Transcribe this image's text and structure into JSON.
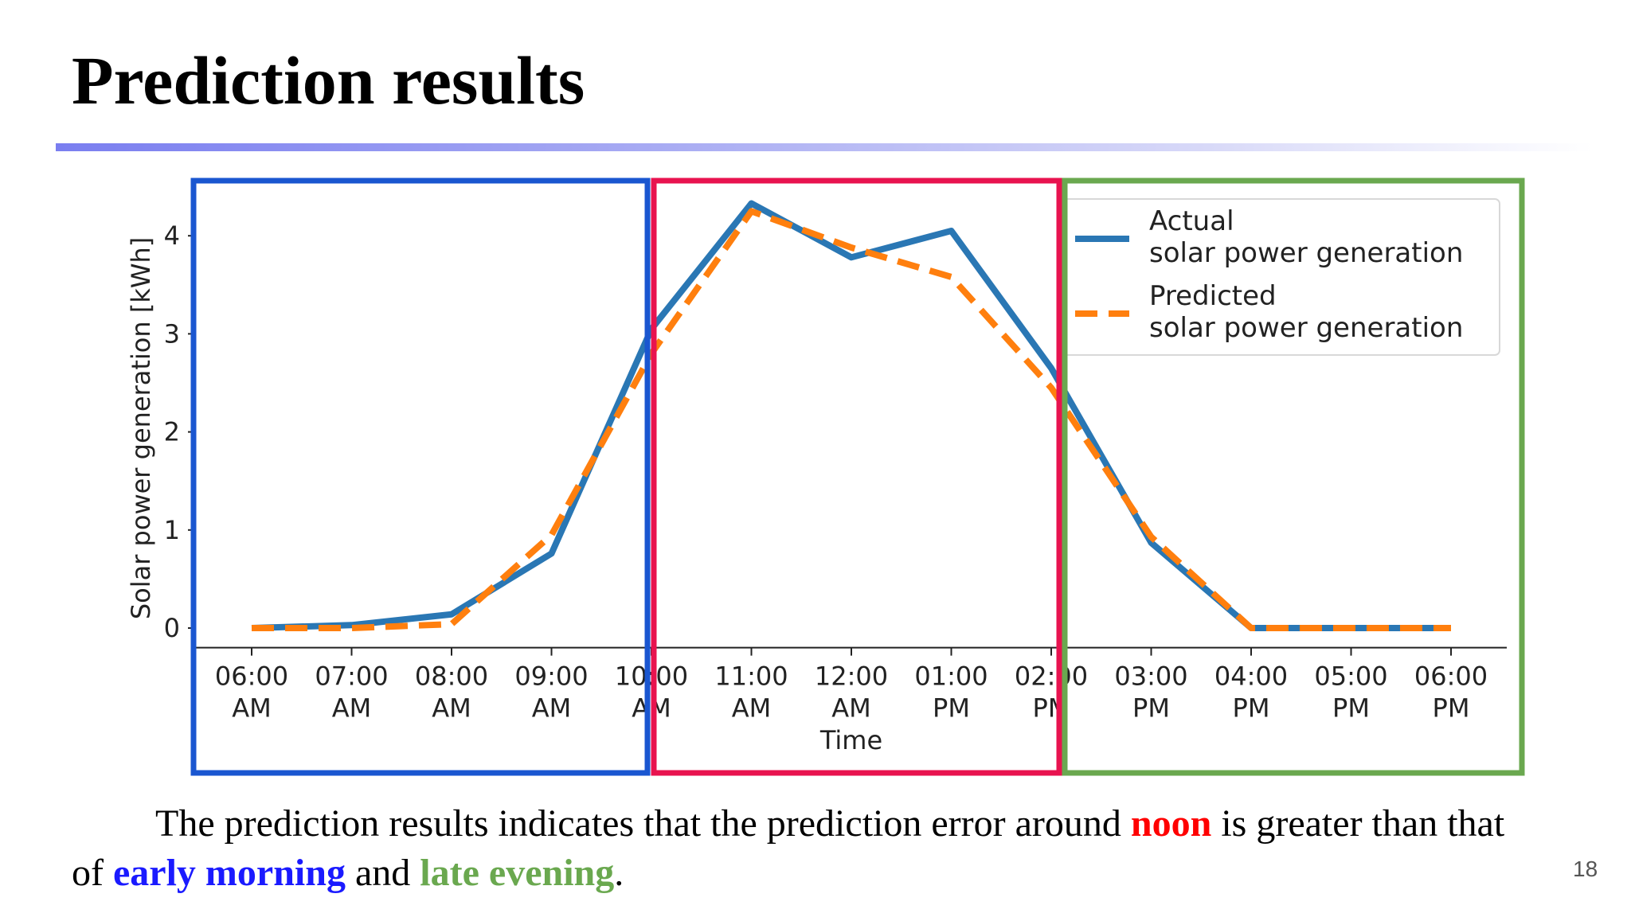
{
  "slide": {
    "title": "Prediction results",
    "page_number": "18"
  },
  "caption": {
    "part1": "The prediction results indicates that the prediction error around ",
    "noon": "noon",
    "part2": " is greater than that of ",
    "early_morning": "early morning",
    "part3": " and ",
    "late_evening": "late evening",
    "part4": "."
  },
  "colors": {
    "actual": "#2a77b4",
    "predicted": "#ff7f0e",
    "morning_box": "#1a56d0",
    "noon_box": "#e8134f",
    "evening_box": "#6aa84f",
    "noon_text": "#ff0000",
    "early_morning_text": "#1a1aff",
    "late_evening_text": "#6aa84f"
  },
  "chart_data": {
    "type": "line",
    "xlabel": "Time",
    "ylabel": "Solar power generation [kWh]",
    "ylim": [
      -0.2,
      4.6
    ],
    "yticks": [
      0,
      1,
      2,
      3,
      4
    ],
    "categories": [
      "06:00\nAM",
      "07:00\nAM",
      "08:00\nAM",
      "09:00\nAM",
      "10:00\nAM",
      "11:00\nAM",
      "12:00\nAM",
      "01:00\nPM",
      "02:00\nPM",
      "03:00\nPM",
      "04:00\nPM",
      "05:00\nPM",
      "06:00\nPM"
    ],
    "series": [
      {
        "name": "Actual\nsolar power generation",
        "style": "solid",
        "values": [
          0.0,
          0.03,
          0.14,
          0.76,
          3.05,
          4.33,
          3.78,
          4.05,
          2.65,
          0.87,
          0.0,
          0.0,
          0.0
        ]
      },
      {
        "name": "Predicted\nsolar power generation",
        "style": "dashed",
        "values": [
          0.0,
          0.0,
          0.04,
          0.95,
          2.8,
          4.25,
          3.88,
          3.58,
          2.45,
          0.93,
          0.0,
          0.0,
          0.0
        ]
      }
    ],
    "legend_position": "top-right",
    "grid": false,
    "highlight_regions": [
      {
        "name": "early morning",
        "color_key": "morning_box"
      },
      {
        "name": "noon",
        "color_key": "noon_box"
      },
      {
        "name": "late evening",
        "color_key": "evening_box"
      }
    ]
  }
}
